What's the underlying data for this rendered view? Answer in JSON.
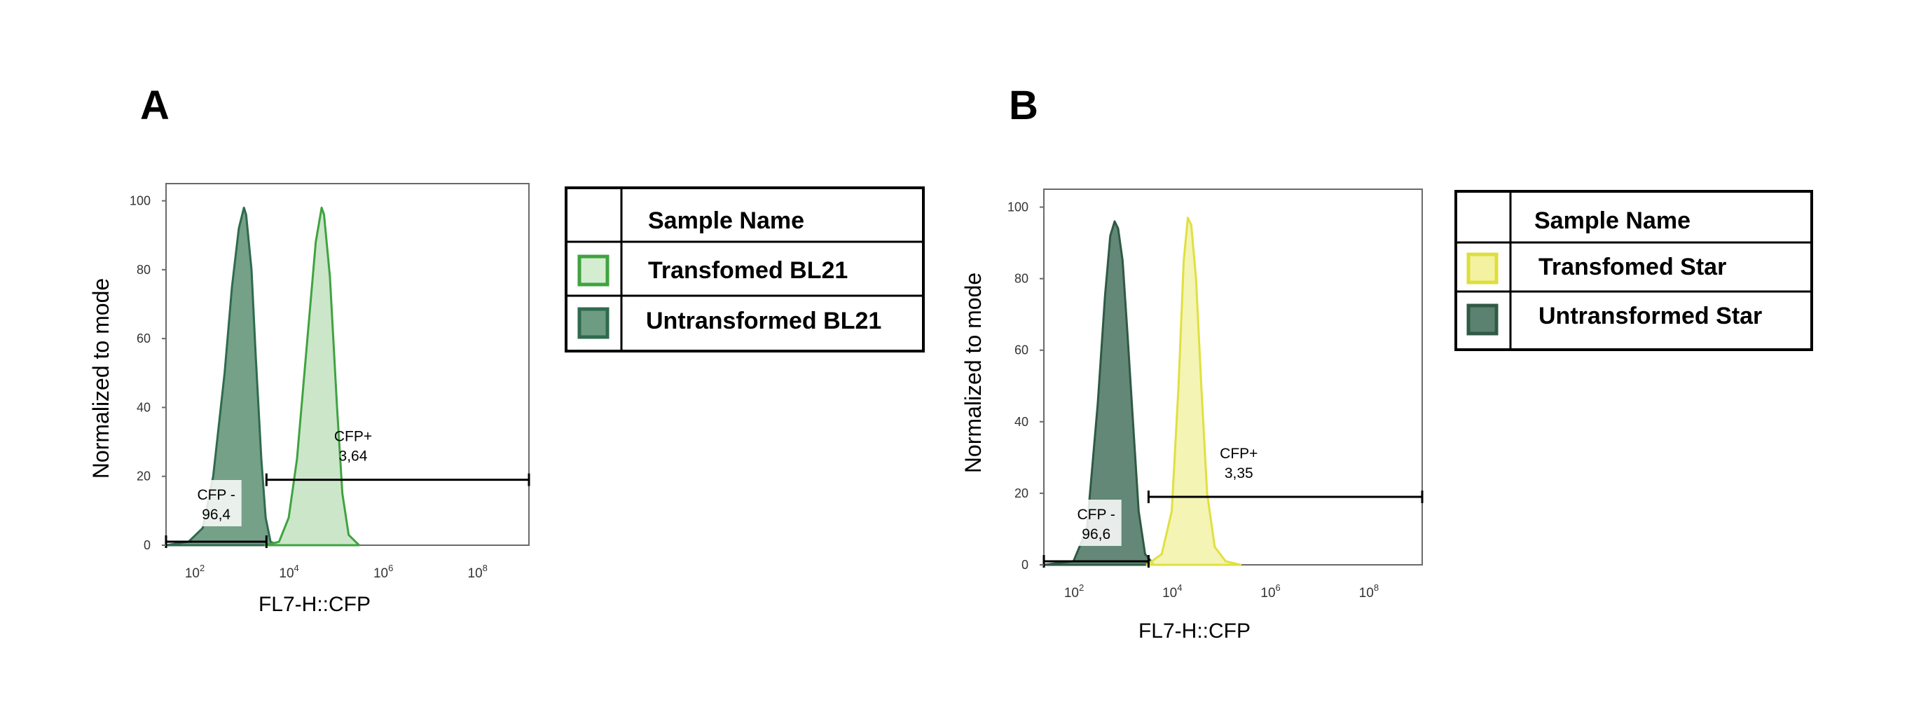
{
  "panels": [
    {
      "letter": "A",
      "legend": {
        "header": "Sample Name",
        "entries": [
          {
            "label": "Transfomed BL21",
            "color": "#3fa33f"
          },
          {
            "label": "Untransformed BL21",
            "color": "#2f6b4e"
          }
        ]
      }
    },
    {
      "letter": "B",
      "legend": {
        "header": "Sample Name",
        "entries": [
          {
            "label": "Transfomed Star",
            "color": "#e0e040"
          },
          {
            "label": "Untransformed Star",
            "color": "#2f5a44"
          }
        ]
      }
    }
  ],
  "chart_data": [
    {
      "type": "area",
      "xlabel": "FL7-H::CFP",
      "ylabel": "Normalized to mode",
      "xscale": "log",
      "xlim": [
        20,
        1000000000
      ],
      "ylim": [
        0,
        105
      ],
      "x_ticks": [
        {
          "base": "10",
          "exp": "2"
        },
        {
          "base": "10",
          "exp": "4"
        },
        {
          "base": "10",
          "exp": "6"
        },
        {
          "base": "10",
          "exp": "8"
        }
      ],
      "y_ticks": [
        "0",
        "20",
        "40",
        "60",
        "80",
        "100"
      ],
      "series": [
        {
          "name": "Untransformed BL21",
          "stroke": "#2f6b4e",
          "fill": "#6e9c82",
          "points": [
            [
              20,
              0
            ],
            [
              60,
              1
            ],
            [
              120,
              5
            ],
            [
              200,
              20
            ],
            [
              350,
              50
            ],
            [
              500,
              75
            ],
            [
              700,
              92
            ],
            [
              900,
              98
            ],
            [
              1000,
              96
            ],
            [
              1300,
              80
            ],
            [
              1600,
              55
            ],
            [
              2100,
              25
            ],
            [
              2600,
              8
            ],
            [
              3300,
              1
            ],
            [
              5000,
              0
            ]
          ]
        },
        {
          "name": "Transfomed BL21",
          "stroke": "#3fa33f",
          "fill": "#c3e2c1",
          "points": [
            [
              2500,
              0
            ],
            [
              5000,
              1
            ],
            [
              8000,
              8
            ],
            [
              12000,
              25
            ],
            [
              20000,
              60
            ],
            [
              30000,
              88
            ],
            [
              40000,
              98
            ],
            [
              45000,
              96
            ],
            [
              60000,
              78
            ],
            [
              85000,
              40
            ],
            [
              110000,
              15
            ],
            [
              150000,
              3
            ],
            [
              250000,
              0
            ]
          ]
        }
      ],
      "gates": [
        {
          "name": "CFP -",
          "value": "96,4",
          "x_start": 20,
          "x_end": 2700,
          "y": 0
        },
        {
          "name": "CFP+",
          "value": "3,64",
          "x_start": 2700,
          "x_end": 1000000000,
          "y": 19
        }
      ]
    },
    {
      "type": "area",
      "xlabel": "FL7-H::CFP",
      "ylabel": "Normalized to mode",
      "xscale": "log",
      "xlim": [
        20,
        1000000000
      ],
      "ylim": [
        0,
        105
      ],
      "x_ticks": [
        {
          "base": "10",
          "exp": "2"
        },
        {
          "base": "10",
          "exp": "4"
        },
        {
          "base": "10",
          "exp": "6"
        },
        {
          "base": "10",
          "exp": "8"
        }
      ],
      "y_ticks": [
        "0",
        "20",
        "40",
        "60",
        "80",
        "100"
      ],
      "series": [
        {
          "name": "Untransformed Star",
          "stroke": "#2f5a44",
          "fill": "#5b8271",
          "points": [
            [
              20,
              0
            ],
            [
              80,
              1
            ],
            [
              150,
              10
            ],
            [
              250,
              45
            ],
            [
              350,
              75
            ],
            [
              450,
              92
            ],
            [
              550,
              96
            ],
            [
              650,
              94
            ],
            [
              800,
              85
            ],
            [
              1000,
              65
            ],
            [
              1300,
              40
            ],
            [
              1700,
              15
            ],
            [
              2300,
              3
            ],
            [
              3500,
              0
            ]
          ]
        },
        {
          "name": "Transfomed Star",
          "stroke": "#e0e040",
          "fill": "#f2f2a8",
          "points": [
            [
              2500,
              0
            ],
            [
              5000,
              3
            ],
            [
              8000,
              15
            ],
            [
              11000,
              50
            ],
            [
              14000,
              85
            ],
            [
              17000,
              97
            ],
            [
              20000,
              95
            ],
            [
              25000,
              80
            ],
            [
              32000,
              50
            ],
            [
              42000,
              20
            ],
            [
              60000,
              5
            ],
            [
              100000,
              1
            ],
            [
              200000,
              0
            ]
          ]
        }
      ],
      "gates": [
        {
          "name": "CFP -",
          "value": "96,6",
          "x_start": 20,
          "x_end": 2700,
          "y": 0
        },
        {
          "name": "CFP+",
          "value": "3,35",
          "x_start": 2700,
          "x_end": 1000000000,
          "y": 19
        }
      ]
    }
  ]
}
